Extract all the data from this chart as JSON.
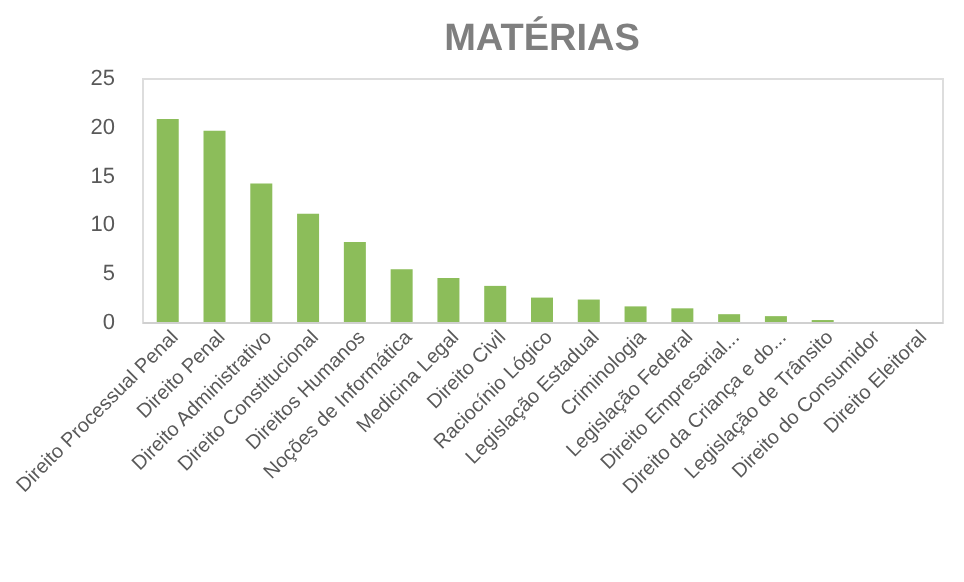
{
  "chart_data": {
    "type": "bar",
    "title": "MATÉRIAS",
    "categories": [
      "Direito Processual Penal",
      "Direito Penal",
      "Direito Administrativo",
      "Direito Constitucional",
      "Direitos Humanos",
      "Noções de Informática",
      "Medicina Legal",
      "Direito Civil",
      "Raciocínio Lógico",
      "Legislação Estadual",
      "Criminologia",
      "Legislação Federal",
      "Direito Empresarial...",
      "Direito da Criança e do...",
      "Legislação de Trânsito",
      "Direito do Consumidor",
      "Direito Eleitoral"
    ],
    "values": [
      20.8,
      19.6,
      14.2,
      11.1,
      8.2,
      5.4,
      4.5,
      3.7,
      2.5,
      2.3,
      1.6,
      1.4,
      0.8,
      0.6,
      0.2,
      0,
      0
    ],
    "color": "#8cbd5a",
    "ylim": [
      0,
      25
    ],
    "yticks": [
      0,
      5,
      10,
      15,
      20,
      25
    ],
    "grid": false
  }
}
